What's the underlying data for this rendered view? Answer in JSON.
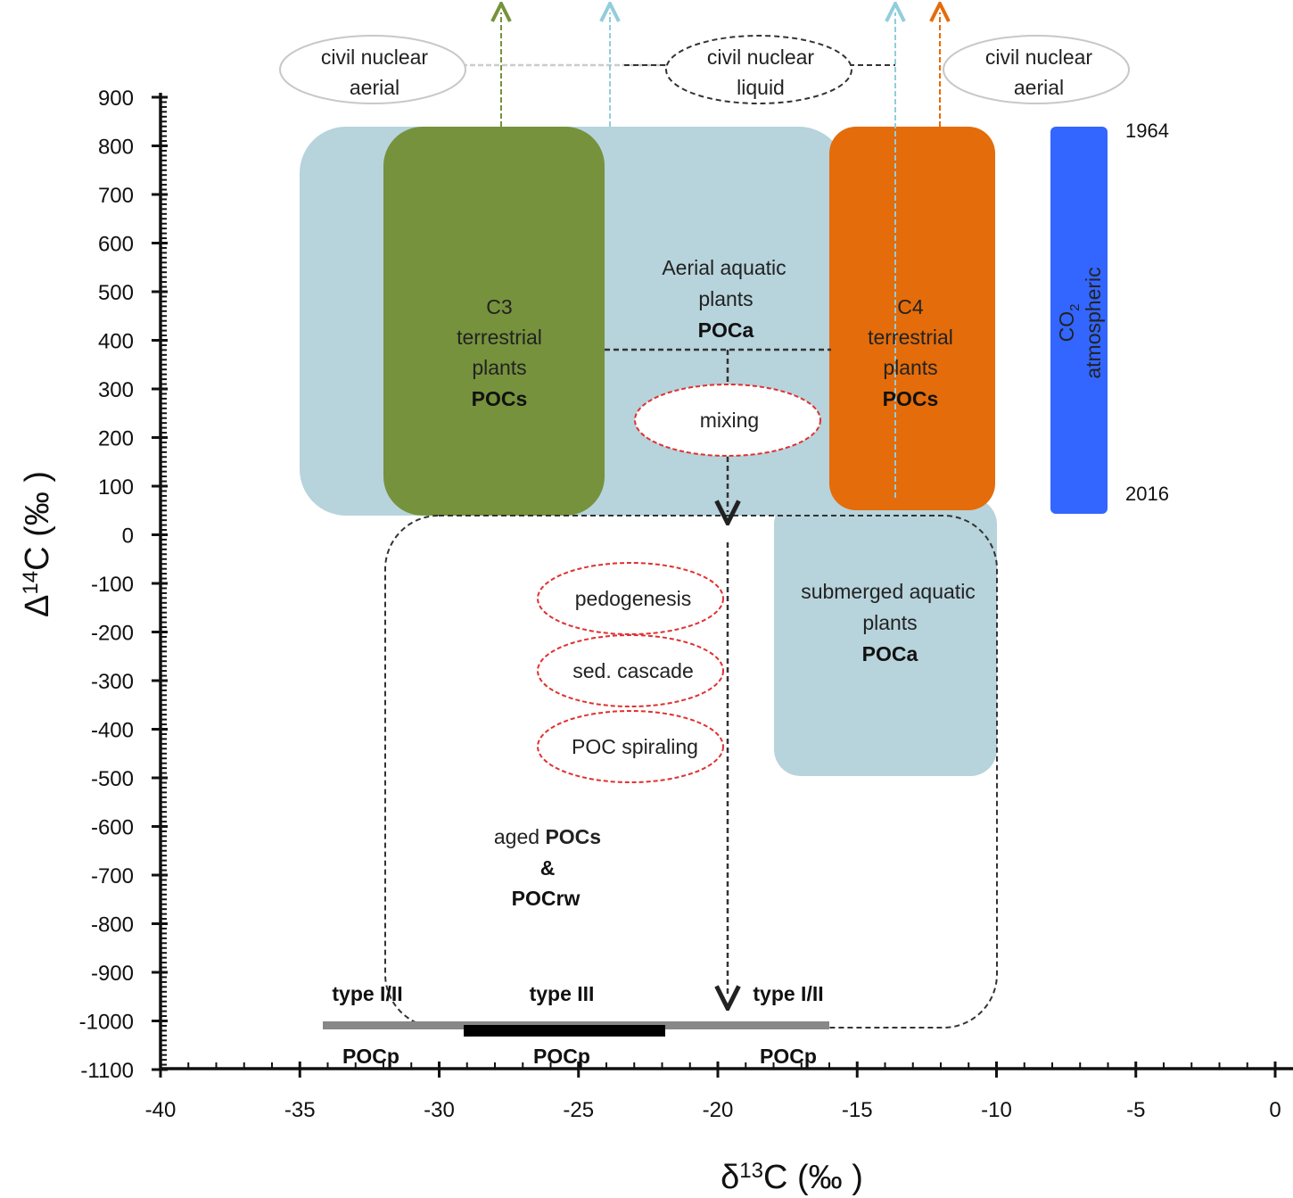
{
  "axes": {
    "x_title": "δ13C (‰ )",
    "y_title": "Δ14C (‰ )",
    "x_ticks": [
      "-40",
      "-35",
      "-30",
      "-25",
      "-20",
      "-15",
      "-10",
      "-5",
      "0"
    ],
    "y_ticks": [
      "900",
      "800",
      "700",
      "600",
      "500",
      "400",
      "300",
      "200",
      "100",
      "0",
      "-100",
      "-200",
      "-300",
      "-400",
      "-500",
      "-600",
      "-700",
      "-800",
      "-900",
      "-1000",
      "-1100"
    ]
  },
  "sources": {
    "c3": {
      "line1": "C3",
      "line2": "terrestrial",
      "line3": "plants",
      "line4": "POCs",
      "color": "#76923c"
    },
    "c4": {
      "line1": "C4",
      "line2": "terrestrial",
      "line3": "plants",
      "line4": "POCs",
      "color": "#e46c0a"
    },
    "aerial_aquatic": {
      "line1": "Aerial aquatic",
      "line2": "plants",
      "line3": "POCa",
      "color": "#b7d3dc"
    },
    "submerged_aquatic": {
      "line1": "submerged aquatic",
      "line2": "plants",
      "line3": "POCa"
    },
    "co2": {
      "line1": "CO",
      "sub": "2",
      "line2": "atmospheric",
      "year_top": "1964",
      "year_bottom": "2016",
      "color": "#3366ff"
    },
    "aged": {
      "line1a": "aged ",
      "line1b": "POCs",
      "line2": "&",
      "line3": "POCrw"
    }
  },
  "processes": {
    "mixing": "mixing",
    "pedogenesis": "pedogenesis",
    "sed_cascade": "sed. cascade",
    "poc_spiraling": "POC spiraling"
  },
  "nuclear": {
    "left": {
      "line1": "civil nuclear",
      "line2": "aerial"
    },
    "middle": {
      "line1": "civil nuclear",
      "line2": "liquid"
    },
    "right": {
      "line1": "civil nuclear",
      "line2": "aerial"
    }
  },
  "petrogenic": {
    "left_type": "type I/II",
    "middle_type": "type III",
    "right_type": "type I/II",
    "label": "POCp"
  },
  "colors": {
    "arrow_green": "#76923c",
    "arrow_blue": "#92cddc",
    "arrow_orange": "#e46c0a",
    "ellipse_red": "#e03030"
  }
}
